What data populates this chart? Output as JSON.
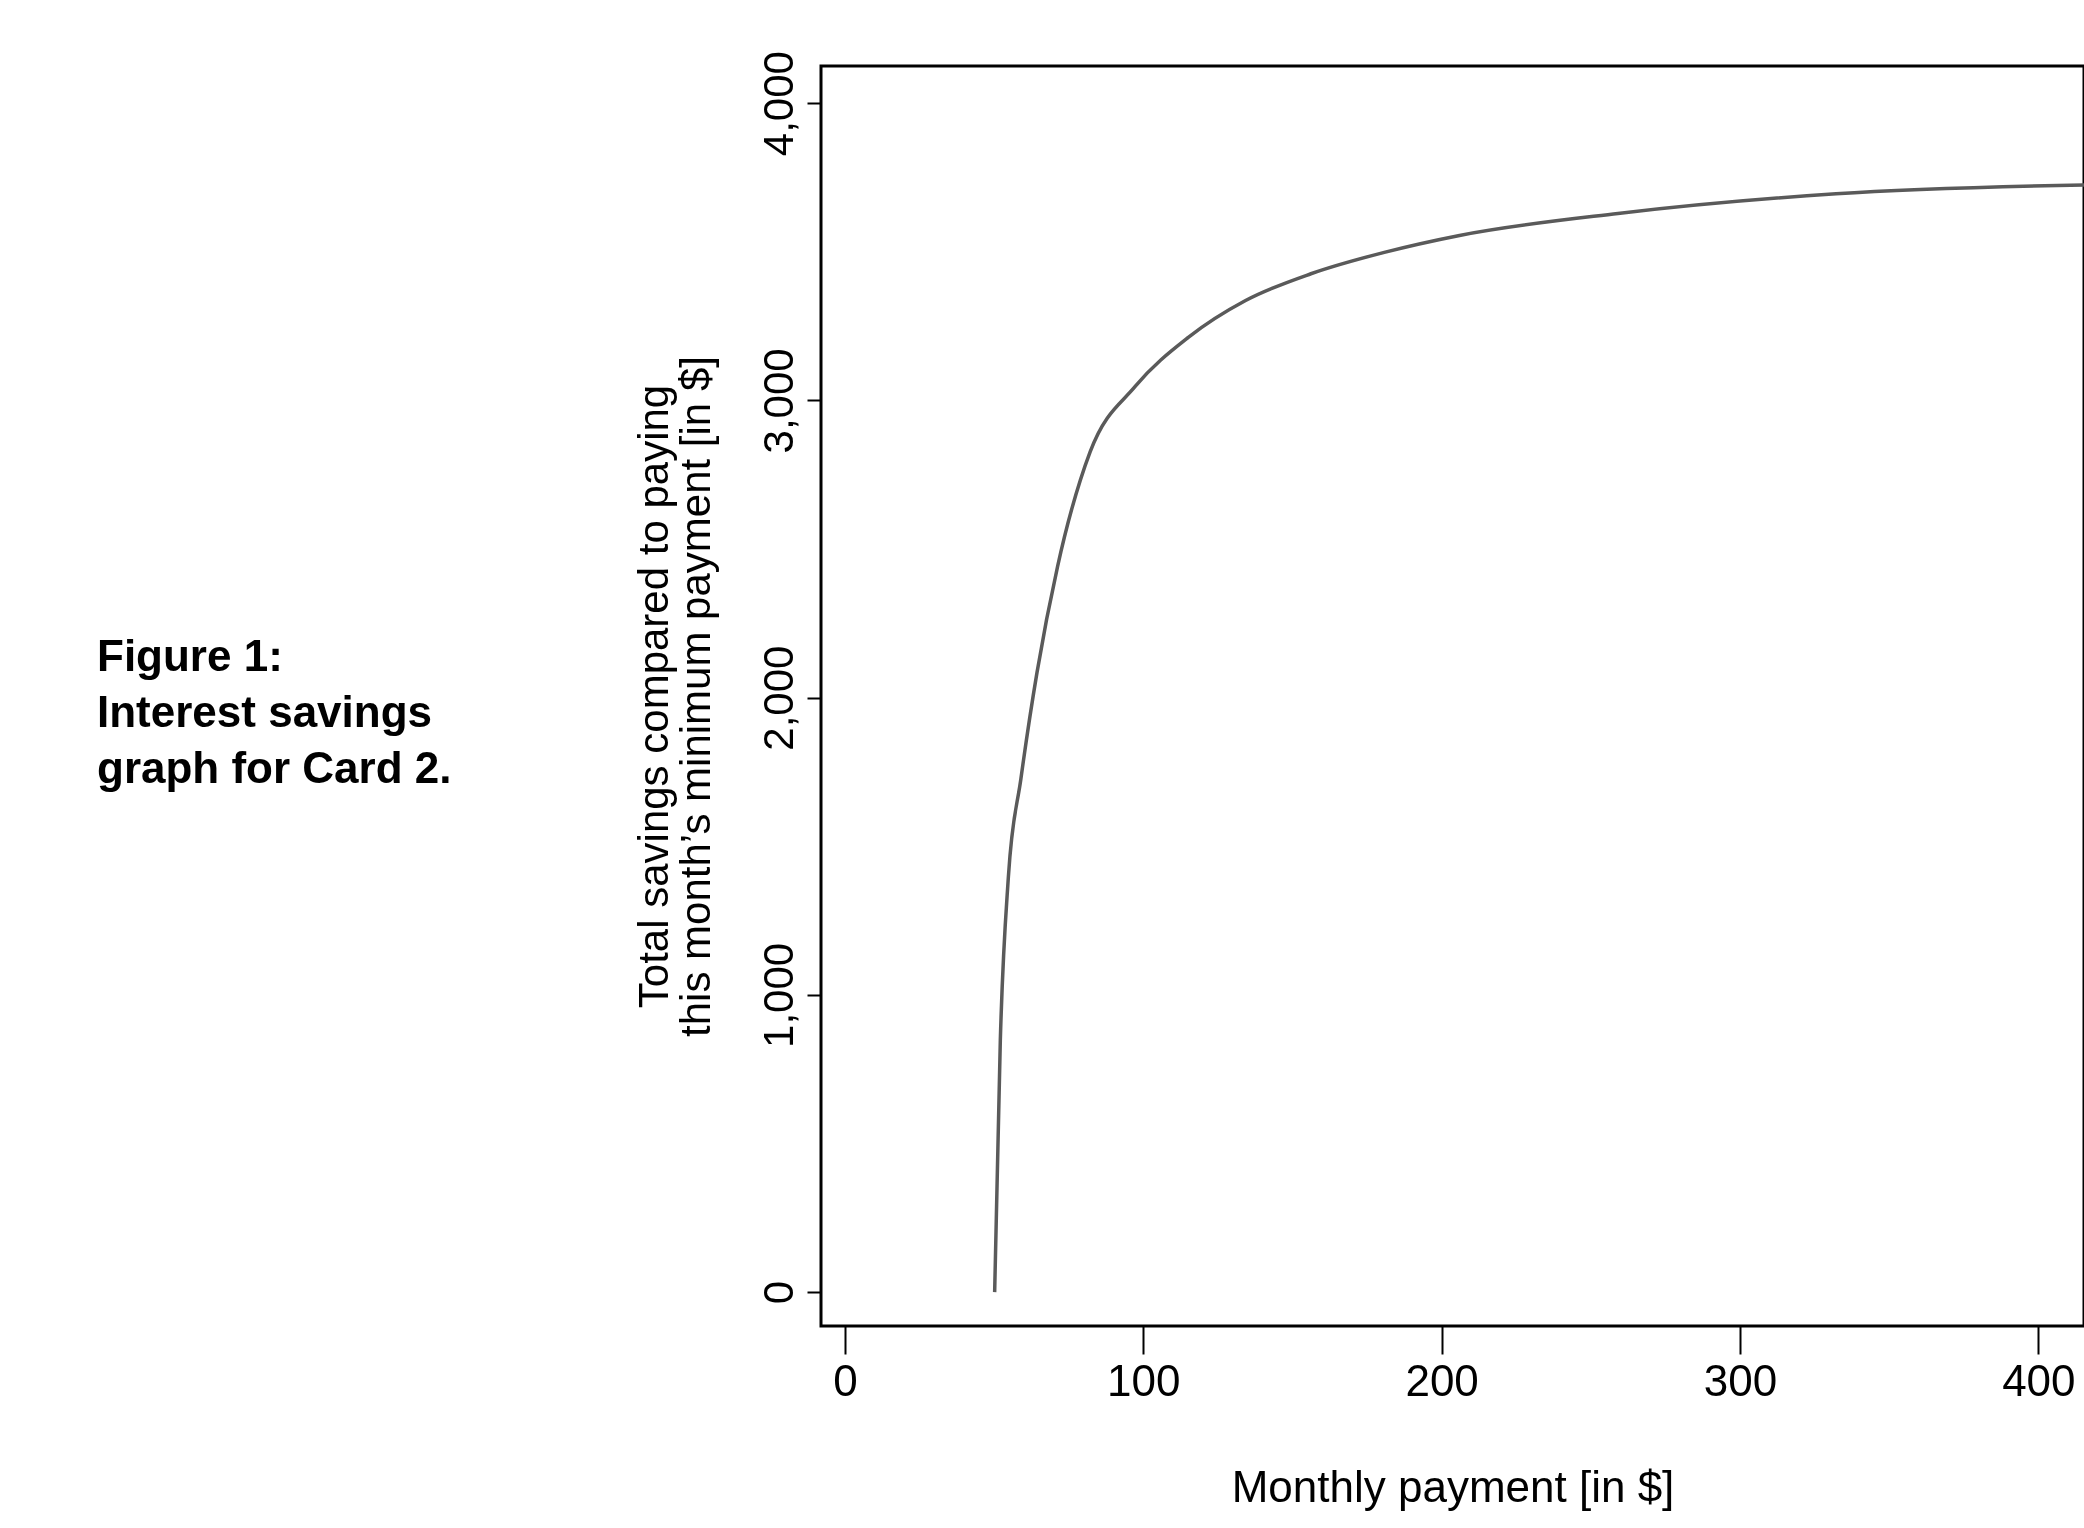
{
  "chart_data": {
    "type": "line",
    "title": "Figure 1:\nInterest savings\ngraph for Card 2.",
    "xlabel": "Monthly payment [in $]",
    "ylabel": "Total savings compared to paying\nthis month’s minimum payment [in $]",
    "x": [
      50.2,
      52.1,
      54.8,
      59.0,
      64.4,
      71.3,
      82.2,
      97.3,
      115.1,
      134.3,
      156.2,
      180.8,
      206.0,
      259.1,
      332.2,
      415.3
    ],
    "series": [
      {
        "color": "#5a5a5a",
        "values": [
          0,
          847,
          1397,
          1727,
          2085,
          2442,
          2827,
          3047,
          3212,
          3336,
          3426,
          3498,
          3555,
          3629,
          3695,
          3725
        ]
      }
    ],
    "xlim": [
      -8,
      415.3
    ],
    "xticks": [
      0,
      100,
      200,
      300,
      400
    ],
    "ylim": [
      -114,
      4125
    ],
    "yticks": [
      {
        "value": 0,
        "label": "0"
      },
      {
        "value": 1000,
        "label": "1,000"
      },
      {
        "value": 2000,
        "label": "2,000"
      },
      {
        "value": 3000,
        "label": "3,000"
      },
      {
        "value": 4000,
        "label": "4,000"
      }
    ],
    "grid": false,
    "legend": false,
    "marker": "none",
    "line_style": "solid"
  }
}
